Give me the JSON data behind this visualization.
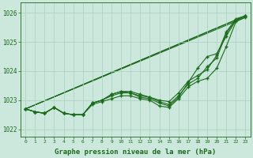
{
  "hours": [
    0,
    1,
    2,
    3,
    4,
    5,
    6,
    7,
    8,
    9,
    10,
    11,
    12,
    13,
    14,
    15,
    16,
    17,
    18,
    19,
    20,
    21,
    22,
    23
  ],
  "line_main": [
    1022.7,
    1022.6,
    1022.55,
    1022.75,
    1022.55,
    1022.5,
    1022.5,
    1022.85,
    1022.95,
    1023.05,
    1023.15,
    1023.15,
    1023.05,
    1023.0,
    1022.8,
    1022.75,
    1023.05,
    1023.45,
    1023.65,
    1023.75,
    1024.1,
    1024.85,
    1025.7,
    1025.85
  ],
  "line_upper1": [
    1022.7,
    1022.6,
    1022.55,
    1022.75,
    1022.55,
    1022.5,
    1022.5,
    1022.9,
    1023.0,
    1023.2,
    1023.3,
    1023.3,
    1023.2,
    1023.1,
    1023.0,
    1022.95,
    1023.25,
    1023.65,
    1023.85,
    1024.05,
    1024.55,
    1025.35,
    1025.8,
    1025.9
  ],
  "line_upper2": [
    1022.7,
    1022.6,
    1022.55,
    1022.75,
    1022.55,
    1022.5,
    1022.5,
    1022.9,
    1023.0,
    1023.15,
    1023.25,
    1023.25,
    1023.1,
    1023.05,
    1022.9,
    1022.8,
    1023.1,
    1023.6,
    1024.1,
    1024.5,
    1024.6,
    1025.2,
    1025.75,
    1025.9
  ],
  "line_upper3": [
    1022.7,
    1022.6,
    1022.55,
    1022.75,
    1022.55,
    1022.5,
    1022.5,
    1022.9,
    1023.0,
    1023.2,
    1023.3,
    1023.25,
    1023.15,
    1023.1,
    1022.95,
    1022.85,
    1023.15,
    1023.55,
    1023.75,
    1024.15,
    1024.45,
    1025.3,
    1025.75,
    1025.9
  ],
  "straight_line1_y": [
    1022.7,
    1025.9
  ],
  "straight_line1_x": [
    0,
    23
  ],
  "straight_line2_y": [
    1022.7,
    1025.9
  ],
  "straight_line2_x": [
    0,
    23
  ],
  "straight_line3_y": [
    1022.7,
    1025.85
  ],
  "straight_line3_x": [
    0,
    23
  ],
  "ylim": [
    1021.75,
    1026.35
  ],
  "yticks": [
    1022,
    1023,
    1024,
    1025,
    1026
  ],
  "xlim": [
    -0.5,
    23.5
  ],
  "xticks": [
    0,
    1,
    2,
    3,
    4,
    5,
    6,
    7,
    8,
    9,
    10,
    11,
    12,
    13,
    14,
    15,
    16,
    17,
    18,
    19,
    20,
    21,
    22,
    23
  ],
  "xlabel": "Graphe pression niveau de la mer (hPa)",
  "line_color": "#1a6b1a",
  "marker": "+",
  "bg_color": "#cce8dc",
  "grid_color": "#aacfc0",
  "axis_color": "#1a6b1a",
  "tick_color": "#1a6b1a"
}
